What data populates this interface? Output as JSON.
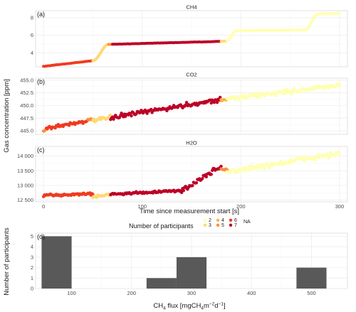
{
  "chart_data": [
    {
      "type": "scatter",
      "panel_tag": "(a)",
      "title": "CH4",
      "ylabel": "Gas concentration [ppm]",
      "xlabel": "Time since measurement start [s]",
      "xlim": [
        -8,
        308
      ],
      "ylim": [
        2.4,
        8.8
      ],
      "x_ticks": [
        0,
        100,
        200,
        300
      ],
      "y_ticks": [
        4,
        6,
        8
      ],
      "y_tick_labels": [
        "4",
        "6",
        "8"
      ],
      "segments": [
        {
          "x0": 0,
          "x1": 50,
          "y0": 2.45,
          "y1": 3.1,
          "participants": 6
        },
        {
          "x0": 50,
          "x1": 66,
          "y0": 3.1,
          "y1": 4.95,
          "participants": 3,
          "shape": "rise"
        },
        {
          "x0": 66,
          "x1": 70,
          "y0": 4.95,
          "y1": 4.97,
          "participants": 5
        },
        {
          "x0": 70,
          "x1": 180,
          "y0": 4.97,
          "y1": 5.3,
          "participants": 7
        },
        {
          "x0": 180,
          "x1": 186,
          "y0": 5.3,
          "y1": 5.35,
          "participants": 3
        },
        {
          "x0": 186,
          "x1": 195,
          "y0": 5.35,
          "y1": 6.5,
          "participants": 2,
          "shape": "rise"
        },
        {
          "x0": 195,
          "x1": 265,
          "y0": 6.5,
          "y1": 6.6,
          "participants": 2
        },
        {
          "x0": 265,
          "x1": 278,
          "y0": 6.6,
          "y1": 8.4,
          "participants": 2,
          "shape": "rise"
        },
        {
          "x0": 278,
          "x1": 300,
          "y0": 8.4,
          "y1": 8.5,
          "participants": 2
        }
      ]
    },
    {
      "type": "scatter",
      "panel_tag": "(b)",
      "title": "CO2",
      "xlim": [
        -8,
        308
      ],
      "ylim": [
        444.3,
        455.4
      ],
      "x_ticks": [
        0,
        100,
        200,
        300
      ],
      "y_ticks": [
        445,
        447.5,
        450,
        452.5,
        455
      ],
      "y_tick_labels": [
        "445.0",
        "447.5",
        "450.0",
        "452.5",
        "455.0"
      ],
      "segments": [
        {
          "x0": 0,
          "x1": 3,
          "y0": 444.9,
          "y1": 445.4,
          "participants": 5,
          "noise": 0.5
        },
        {
          "x0": 3,
          "x1": 45,
          "y0": 445.5,
          "y1": 447.0,
          "participants": 6,
          "noise": 1.1
        },
        {
          "x0": 45,
          "x1": 50,
          "y0": 447.0,
          "y1": 447.3,
          "participants": 5,
          "noise": 0.8
        },
        {
          "x0": 50,
          "x1": 68,
          "y0": 447.0,
          "y1": 447.6,
          "participants": 3,
          "noise": 1.1
        },
        {
          "x0": 68,
          "x1": 180,
          "y0": 447.6,
          "y1": 451.2,
          "participants": 7,
          "noise": 1.3
        },
        {
          "x0": 180,
          "x1": 186,
          "y0": 451.0,
          "y1": 451.3,
          "participants": 4,
          "noise": 0.6
        },
        {
          "x0": 186,
          "x1": 300,
          "y0": 451.3,
          "y1": 454.0,
          "participants": 2,
          "noise": 1.4
        }
      ]
    },
    {
      "type": "scatter",
      "panel_tag": "(c)",
      "title": "H2O",
      "xlim": [
        -8,
        308
      ],
      "ylim": [
        12440,
        14330
      ],
      "x_ticks": [
        0,
        100,
        200,
        300
      ],
      "y_ticks": [
        12500,
        13000,
        13500,
        14000
      ],
      "y_tick_labels": [
        "12 500",
        "13 000",
        "13 500",
        "14 000"
      ],
      "segments": [
        {
          "x0": 0,
          "x1": 50,
          "y0": 12650,
          "y1": 12720,
          "participants": 6,
          "noise": 120
        },
        {
          "x0": 50,
          "x1": 68,
          "y0": 12600,
          "y1": 12700,
          "participants": 3,
          "noise": 110
        },
        {
          "x0": 68,
          "x1": 140,
          "y0": 12700,
          "y1": 12820,
          "participants": 7,
          "noise": 110
        },
        {
          "x0": 140,
          "x1": 180,
          "y0": 12820,
          "y1": 13650,
          "participants": 7,
          "noise": 250
        },
        {
          "x0": 180,
          "x1": 186,
          "y0": 13550,
          "y1": 13550,
          "participants": 5,
          "noise": 80
        },
        {
          "x0": 186,
          "x1": 300,
          "y0": 13450,
          "y1": 14100,
          "participants": 2,
          "noise": 280
        }
      ]
    },
    {
      "type": "bar",
      "panel_tag": "(d)",
      "xlabel_parts": [
        "CH",
        "4",
        " flux [mgCH",
        "4",
        "m",
        "−2",
        "d",
        "−1",
        "]"
      ],
      "ylabel": "Number of participants",
      "xlim": [
        40,
        560
      ],
      "ylim": [
        0,
        5.3
      ],
      "x_ticks": [
        100,
        200,
        300,
        400,
        500
      ],
      "y_ticks": [
        0,
        1,
        2,
        3,
        4,
        5
      ],
      "bars": [
        {
          "x0": 50,
          "x1": 100,
          "count": 5
        },
        {
          "x0": 225,
          "x1": 275,
          "count": 1
        },
        {
          "x0": 275,
          "x1": 325,
          "count": 3
        },
        {
          "x0": 475,
          "x1": 525,
          "count": 2
        }
      ],
      "bar_color": "#595959"
    }
  ],
  "legend": {
    "title": "Number of participants",
    "entries": [
      {
        "label": "2",
        "color": "#ffffb2"
      },
      {
        "label": "3",
        "color": "#fed976"
      },
      {
        "label": "4",
        "color": "#feb24c"
      },
      {
        "label": "5",
        "color": "#fd8d3c"
      },
      {
        "label": "6",
        "color": "#f03b20"
      },
      {
        "label": "7",
        "color": "#bd0026"
      }
    ],
    "na_label": "NA"
  }
}
